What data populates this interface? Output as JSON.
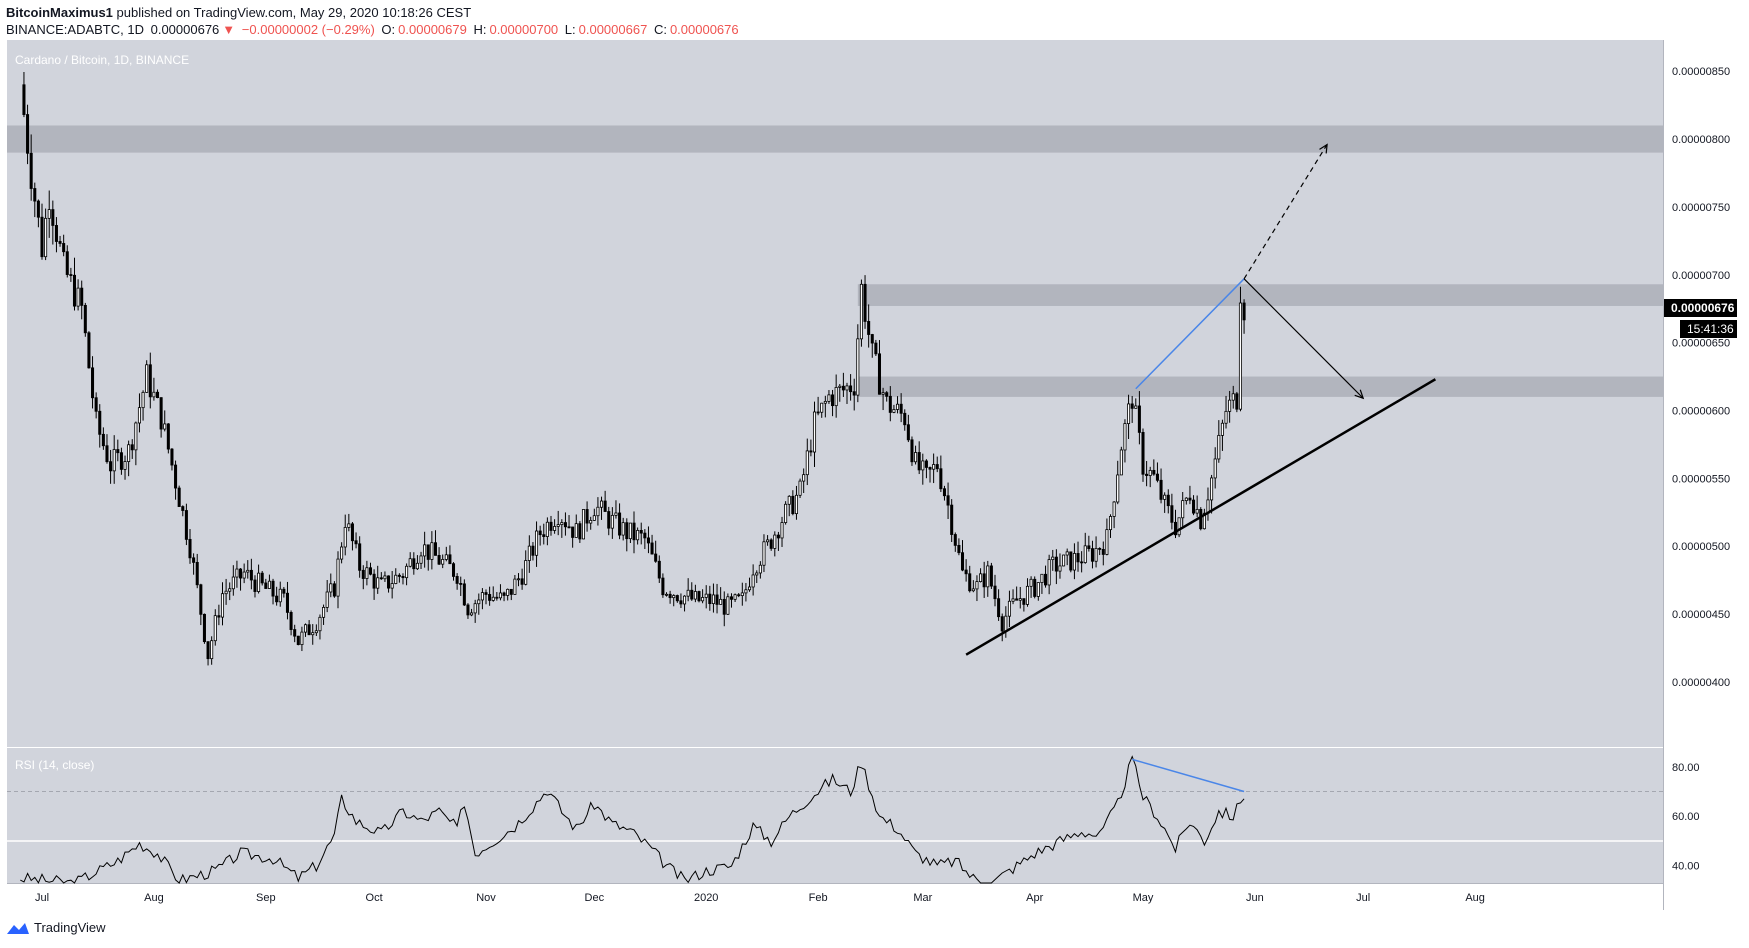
{
  "header": {
    "author": "BitcoinMaximus1",
    "published": "published on TradingView.com, May 29, 2020 10:18:26 CEST",
    "symbol": "BINANCE:ADABTC, 1D",
    "last": "0.00000676",
    "change": "−0.00000002 (−0.29%)",
    "o_label": "O:",
    "o_value": "0.00000679",
    "h_label": "H:",
    "h_value": "0.00000700",
    "l_label": "L:",
    "l_value": "0.00000667",
    "c_label": "C:",
    "c_value": "0.00000676"
  },
  "chart_title": "Cardano / Bitcoin, 1D, BINANCE",
  "rsi_title": "RSI (14, close)",
  "price_badge": "0.00000676",
  "countdown_badge": "15:41:36",
  "footer": {
    "brand": "TradingView"
  },
  "colors": {
    "background": "#d1d4dc",
    "zone": "#b2b5be",
    "candle_up": "#ffffff",
    "candle_down": "#000000",
    "trendline": "#000000",
    "divergence": "#4a86e8",
    "badge": "#000000"
  },
  "chart_data": {
    "type": "candlestick",
    "title": "Cardano / Bitcoin, 1D, BINANCE",
    "x_ticks": [
      "Jul",
      "Aug",
      "Sep",
      "Oct",
      "Nov",
      "Dec",
      "2020",
      "Feb",
      "Mar",
      "Apr",
      "May",
      "Jun",
      "Jul",
      "Aug"
    ],
    "y_ticks": [
      "0.00000850",
      "0.00000800",
      "0.00000750",
      "0.00000700",
      "0.00000650",
      "0.00000600",
      "0.00000550",
      "0.00000500",
      "0.00000450",
      "0.00000400"
    ],
    "ylim": [
      3.52e-06,
      8.73e-06
    ],
    "close_path": [
      [
        "2019-06-25",
        8.4e-06
      ],
      [
        "2019-06-28",
        7.75e-06
      ],
      [
        "2019-07-01",
        7.2e-06
      ],
      [
        "2019-07-03",
        7.6e-06
      ],
      [
        "2019-07-07",
        7.05e-06
      ],
      [
        "2019-07-12",
        6.75e-06
      ],
      [
        "2019-07-16",
        5.9e-06
      ],
      [
        "2019-07-20",
        5.6e-06
      ],
      [
        "2019-07-25",
        5.7e-06
      ],
      [
        "2019-07-30",
        6.25e-06
      ],
      [
        "2019-08-03",
        5.95e-06
      ],
      [
        "2019-08-06",
        5.6e-06
      ],
      [
        "2019-08-11",
        5e-06
      ],
      [
        "2019-08-16",
        4.2e-06
      ],
      [
        "2019-08-20",
        4.65e-06
      ],
      [
        "2019-08-26",
        4.8e-06
      ],
      [
        "2019-08-31",
        4.7e-06
      ],
      [
        "2019-09-06",
        4.6e-06
      ],
      [
        "2019-09-10",
        4.3e-06
      ],
      [
        "2019-09-15",
        4.45e-06
      ],
      [
        "2019-09-20",
        4.7e-06
      ],
      [
        "2019-09-23",
        5.2e-06
      ],
      [
        "2019-09-27",
        4.85e-06
      ],
      [
        "2019-10-03",
        4.7e-06
      ],
      [
        "2019-10-09",
        4.8e-06
      ],
      [
        "2019-10-14",
        5e-06
      ],
      [
        "2019-10-19",
        4.9e-06
      ],
      [
        "2019-10-24",
        4.8e-06
      ],
      [
        "2019-10-27",
        4.55e-06
      ],
      [
        "2019-11-01",
        4.65e-06
      ],
      [
        "2019-11-06",
        4.6e-06
      ],
      [
        "2019-11-11",
        4.8e-06
      ],
      [
        "2019-11-16",
        5.1e-06
      ],
      [
        "2019-11-21",
        5.25e-06
      ],
      [
        "2019-11-26",
        5.1e-06
      ],
      [
        "2019-12-01",
        5.3e-06
      ],
      [
        "2019-12-05",
        5.2e-06
      ],
      [
        "2019-12-10",
        5.1e-06
      ],
      [
        "2019-12-15",
        5.05e-06
      ],
      [
        "2019-12-20",
        4.7e-06
      ],
      [
        "2019-12-24",
        4.65e-06
      ],
      [
        "2019-12-29",
        4.6e-06
      ],
      [
        "2020-01-03",
        4.6e-06
      ],
      [
        "2020-01-07",
        4.55e-06
      ],
      [
        "2020-01-11",
        4.6e-06
      ],
      [
        "2020-01-14",
        4.85e-06
      ],
      [
        "2020-01-18",
        5e-06
      ],
      [
        "2020-01-22",
        5.2e-06
      ],
      [
        "2020-01-27",
        5.4e-06
      ],
      [
        "2020-01-31",
        5.9e-06
      ],
      [
        "2020-02-04",
        6.1e-06
      ],
      [
        "2020-02-08",
        6.15e-06
      ],
      [
        "2020-02-11",
        6.2e-06
      ],
      [
        "2020-02-13",
        6.9e-06
      ],
      [
        "2020-02-16",
        6.4e-06
      ],
      [
        "2020-02-20",
        6.05e-06
      ],
      [
        "2020-02-25",
        5.95e-06
      ],
      [
        "2020-02-28",
        5.6e-06
      ],
      [
        "2020-03-02",
        5.5e-06
      ],
      [
        "2020-03-05",
        5.6e-06
      ],
      [
        "2020-03-08",
        5.3e-06
      ],
      [
        "2020-03-12",
        4.8e-06
      ],
      [
        "2020-03-16",
        4.7e-06
      ],
      [
        "2020-03-19",
        4.8e-06
      ],
      [
        "2020-03-23",
        4.45e-06
      ],
      [
        "2020-03-27",
        4.6e-06
      ],
      [
        "2020-04-01",
        4.7e-06
      ],
      [
        "2020-04-06",
        4.85e-06
      ],
      [
        "2020-04-12",
        4.9e-06
      ],
      [
        "2020-04-17",
        4.95e-06
      ],
      [
        "2020-04-21",
        5.05e-06
      ],
      [
        "2020-04-25",
        5.75e-06
      ],
      [
        "2020-04-28",
        6.1e-06
      ],
      [
        "2020-05-01",
        5.6e-06
      ],
      [
        "2020-05-04",
        5.5e-06
      ],
      [
        "2020-05-07",
        5.3e-06
      ],
      [
        "2020-05-10",
        5.15e-06
      ],
      [
        "2020-05-14",
        5.4e-06
      ],
      [
        "2020-05-17",
        5.2e-06
      ],
      [
        "2020-05-20",
        5.5e-06
      ],
      [
        "2020-05-24",
        6e-06
      ],
      [
        "2020-05-27",
        6.1e-06
      ],
      [
        "2020-05-28",
        6.9e-06
      ],
      [
        "2020-05-29",
        6.76e-06
      ]
    ],
    "support_resistance_zones": [
      {
        "top": 8.1e-06,
        "bottom": 7.9e-06
      },
      {
        "top": 6.93e-06,
        "bottom": 6.77e-06
      },
      {
        "top": 6.25e-06,
        "bottom": 6.1e-06
      }
    ],
    "ascending_trendline": {
      "from": [
        "2020-03-13",
        4.2e-06
      ],
      "to": [
        "2020-07-21",
        6.23e-06
      ]
    },
    "price_divergence_line": {
      "from": [
        "2020-04-29",
        6.16e-06
      ],
      "to": [
        "2020-05-29",
        6.97e-06
      ]
    },
    "projection_up": {
      "from": [
        "2020-05-29",
        6.97e-06
      ],
      "to": [
        "2020-06-21",
        7.96e-06
      ],
      "style": "dashed"
    },
    "projection_down": {
      "from": [
        "2020-05-29",
        6.97e-06
      ],
      "to": [
        "2020-07-01",
        6.09e-06
      ],
      "style": "solid"
    },
    "rsi": {
      "title": "RSI (14, close)",
      "y_ticks": [
        "80.00",
        "60.00",
        "40.00"
      ],
      "ylim": [
        33,
        88
      ],
      "overbought": 70,
      "oversold": 50,
      "series": [
        [
          "2019-06-25",
          35
        ],
        [
          "2019-07-10",
          33
        ],
        [
          "2019-07-22",
          42
        ],
        [
          "2019-07-28",
          49
        ],
        [
          "2019-08-02",
          45
        ],
        [
          "2019-08-08",
          34
        ],
        [
          "2019-08-18",
          38
        ],
        [
          "2019-08-25",
          45
        ],
        [
          "2019-09-03",
          43
        ],
        [
          "2019-09-10",
          35
        ],
        [
          "2019-09-15",
          40
        ],
        [
          "2019-09-20",
          52
        ],
        [
          "2019-09-22",
          67
        ],
        [
          "2019-09-26",
          58
        ],
        [
          "2019-10-03",
          53
        ],
        [
          "2019-10-09",
          62
        ],
        [
          "2019-10-14",
          58
        ],
        [
          "2019-10-19",
          62
        ],
        [
          "2019-10-24",
          55
        ],
        [
          "2019-10-26",
          66
        ],
        [
          "2019-10-29",
          45
        ],
        [
          "2019-11-03",
          50
        ],
        [
          "2019-11-09",
          56
        ],
        [
          "2019-11-14",
          64
        ],
        [
          "2019-11-18",
          71
        ],
        [
          "2019-11-22",
          62
        ],
        [
          "2019-11-26",
          55
        ],
        [
          "2019-12-01",
          65
        ],
        [
          "2019-12-06",
          57
        ],
        [
          "2019-12-11",
          54
        ],
        [
          "2019-12-16",
          48
        ],
        [
          "2019-12-21",
          40
        ],
        [
          "2019-12-26",
          34
        ],
        [
          "2020-01-01",
          38
        ],
        [
          "2020-01-08",
          40
        ],
        [
          "2020-01-14",
          56
        ],
        [
          "2020-01-19",
          50
        ],
        [
          "2020-01-24",
          60
        ],
        [
          "2020-01-30",
          68
        ],
        [
          "2020-02-05",
          75
        ],
        [
          "2020-02-10",
          70
        ],
        [
          "2020-02-13",
          82
        ],
        [
          "2020-02-18",
          60
        ],
        [
          "2020-02-23",
          55
        ],
        [
          "2020-02-28",
          45
        ],
        [
          "2020-03-05",
          40
        ],
        [
          "2020-03-10",
          42
        ],
        [
          "2020-03-15",
          35
        ],
        [
          "2020-03-20",
          33
        ],
        [
          "2020-03-25",
          38
        ],
        [
          "2020-04-01",
          45
        ],
        [
          "2020-04-08",
          50
        ],
        [
          "2020-04-14",
          54
        ],
        [
          "2020-04-19",
          52
        ],
        [
          "2020-04-24",
          65
        ],
        [
          "2020-04-28",
          83
        ],
        [
          "2020-05-01",
          68
        ],
        [
          "2020-05-05",
          60
        ],
        [
          "2020-05-10",
          47
        ],
        [
          "2020-05-14",
          58
        ],
        [
          "2020-05-18",
          50
        ],
        [
          "2020-05-22",
          62
        ],
        [
          "2020-05-26",
          60
        ],
        [
          "2020-05-29",
          69
        ]
      ],
      "divergence_line": {
        "from": [
          "2020-04-28",
          83
        ],
        "to": [
          "2020-05-29",
          70
        ]
      }
    }
  }
}
